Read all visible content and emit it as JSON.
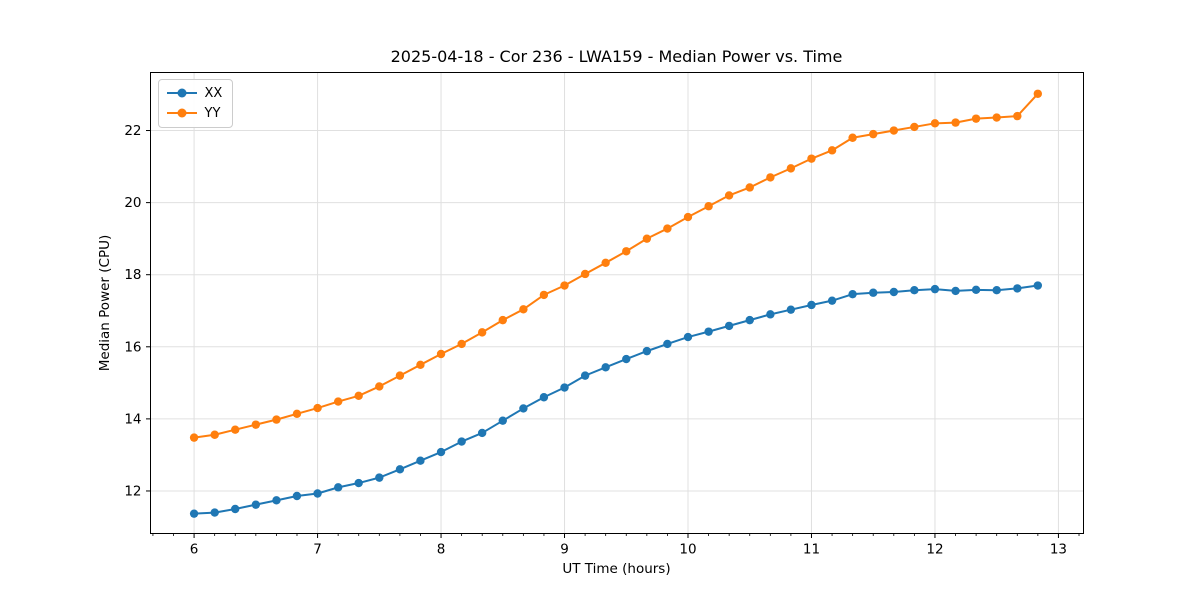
{
  "chart_data": {
    "type": "line",
    "title": "2025-04-18 - Cor 236 - LWA159 - Median Power vs. Time",
    "xlabel": "UT Time (hours)",
    "ylabel": "Median Power (CPU)",
    "xlim": [
      5.647,
      13.203
    ],
    "ylim": [
      10.82,
      23.61
    ],
    "xticks": [
      6,
      7,
      8,
      9,
      10,
      11,
      12,
      13
    ],
    "yticks": [
      12,
      14,
      16,
      18,
      20,
      22
    ],
    "x_minor_divisions_per_hour": 6,
    "grid": true,
    "grid_color": "#e0e0e0",
    "legend_position": "upper left",
    "x": [
      6.0,
      6.167,
      6.333,
      6.5,
      6.667,
      6.833,
      7.0,
      7.167,
      7.333,
      7.5,
      7.667,
      7.833,
      8.0,
      8.167,
      8.333,
      8.5,
      8.667,
      8.833,
      9.0,
      9.167,
      9.333,
      9.5,
      9.667,
      9.833,
      10.0,
      10.167,
      10.333,
      10.5,
      10.667,
      10.833,
      11.0,
      11.167,
      11.333,
      11.5,
      11.667,
      11.833,
      12.0,
      12.167,
      12.333,
      12.5,
      12.667,
      12.833
    ],
    "series": [
      {
        "name": "XX",
        "color": "#1f77b4",
        "values": [
          11.37,
          11.4,
          11.5,
          11.62,
          11.74,
          11.86,
          11.93,
          12.1,
          12.22,
          12.37,
          12.6,
          12.84,
          13.08,
          13.37,
          13.61,
          13.95,
          14.29,
          14.6,
          14.87,
          15.2,
          15.43,
          15.66,
          15.88,
          16.08,
          16.27,
          16.42,
          16.58,
          16.74,
          16.9,
          17.03,
          17.16,
          17.28,
          17.46,
          17.5,
          17.52,
          17.57,
          17.6,
          17.55,
          17.58,
          17.57,
          17.62,
          17.7
        ]
      },
      {
        "name": "YY",
        "color": "#ff7f0e",
        "values": [
          13.48,
          13.56,
          13.7,
          13.84,
          13.98,
          14.14,
          14.3,
          14.48,
          14.64,
          14.9,
          15.2,
          15.5,
          15.8,
          16.08,
          16.4,
          16.74,
          17.04,
          17.44,
          17.7,
          18.02,
          18.33,
          18.65,
          19.0,
          19.28,
          19.6,
          19.9,
          20.2,
          20.42,
          20.7,
          20.95,
          21.22,
          21.45,
          21.8,
          21.9,
          22.0,
          22.1,
          22.2,
          22.22,
          22.33,
          22.36,
          22.4,
          23.02
        ]
      }
    ]
  }
}
